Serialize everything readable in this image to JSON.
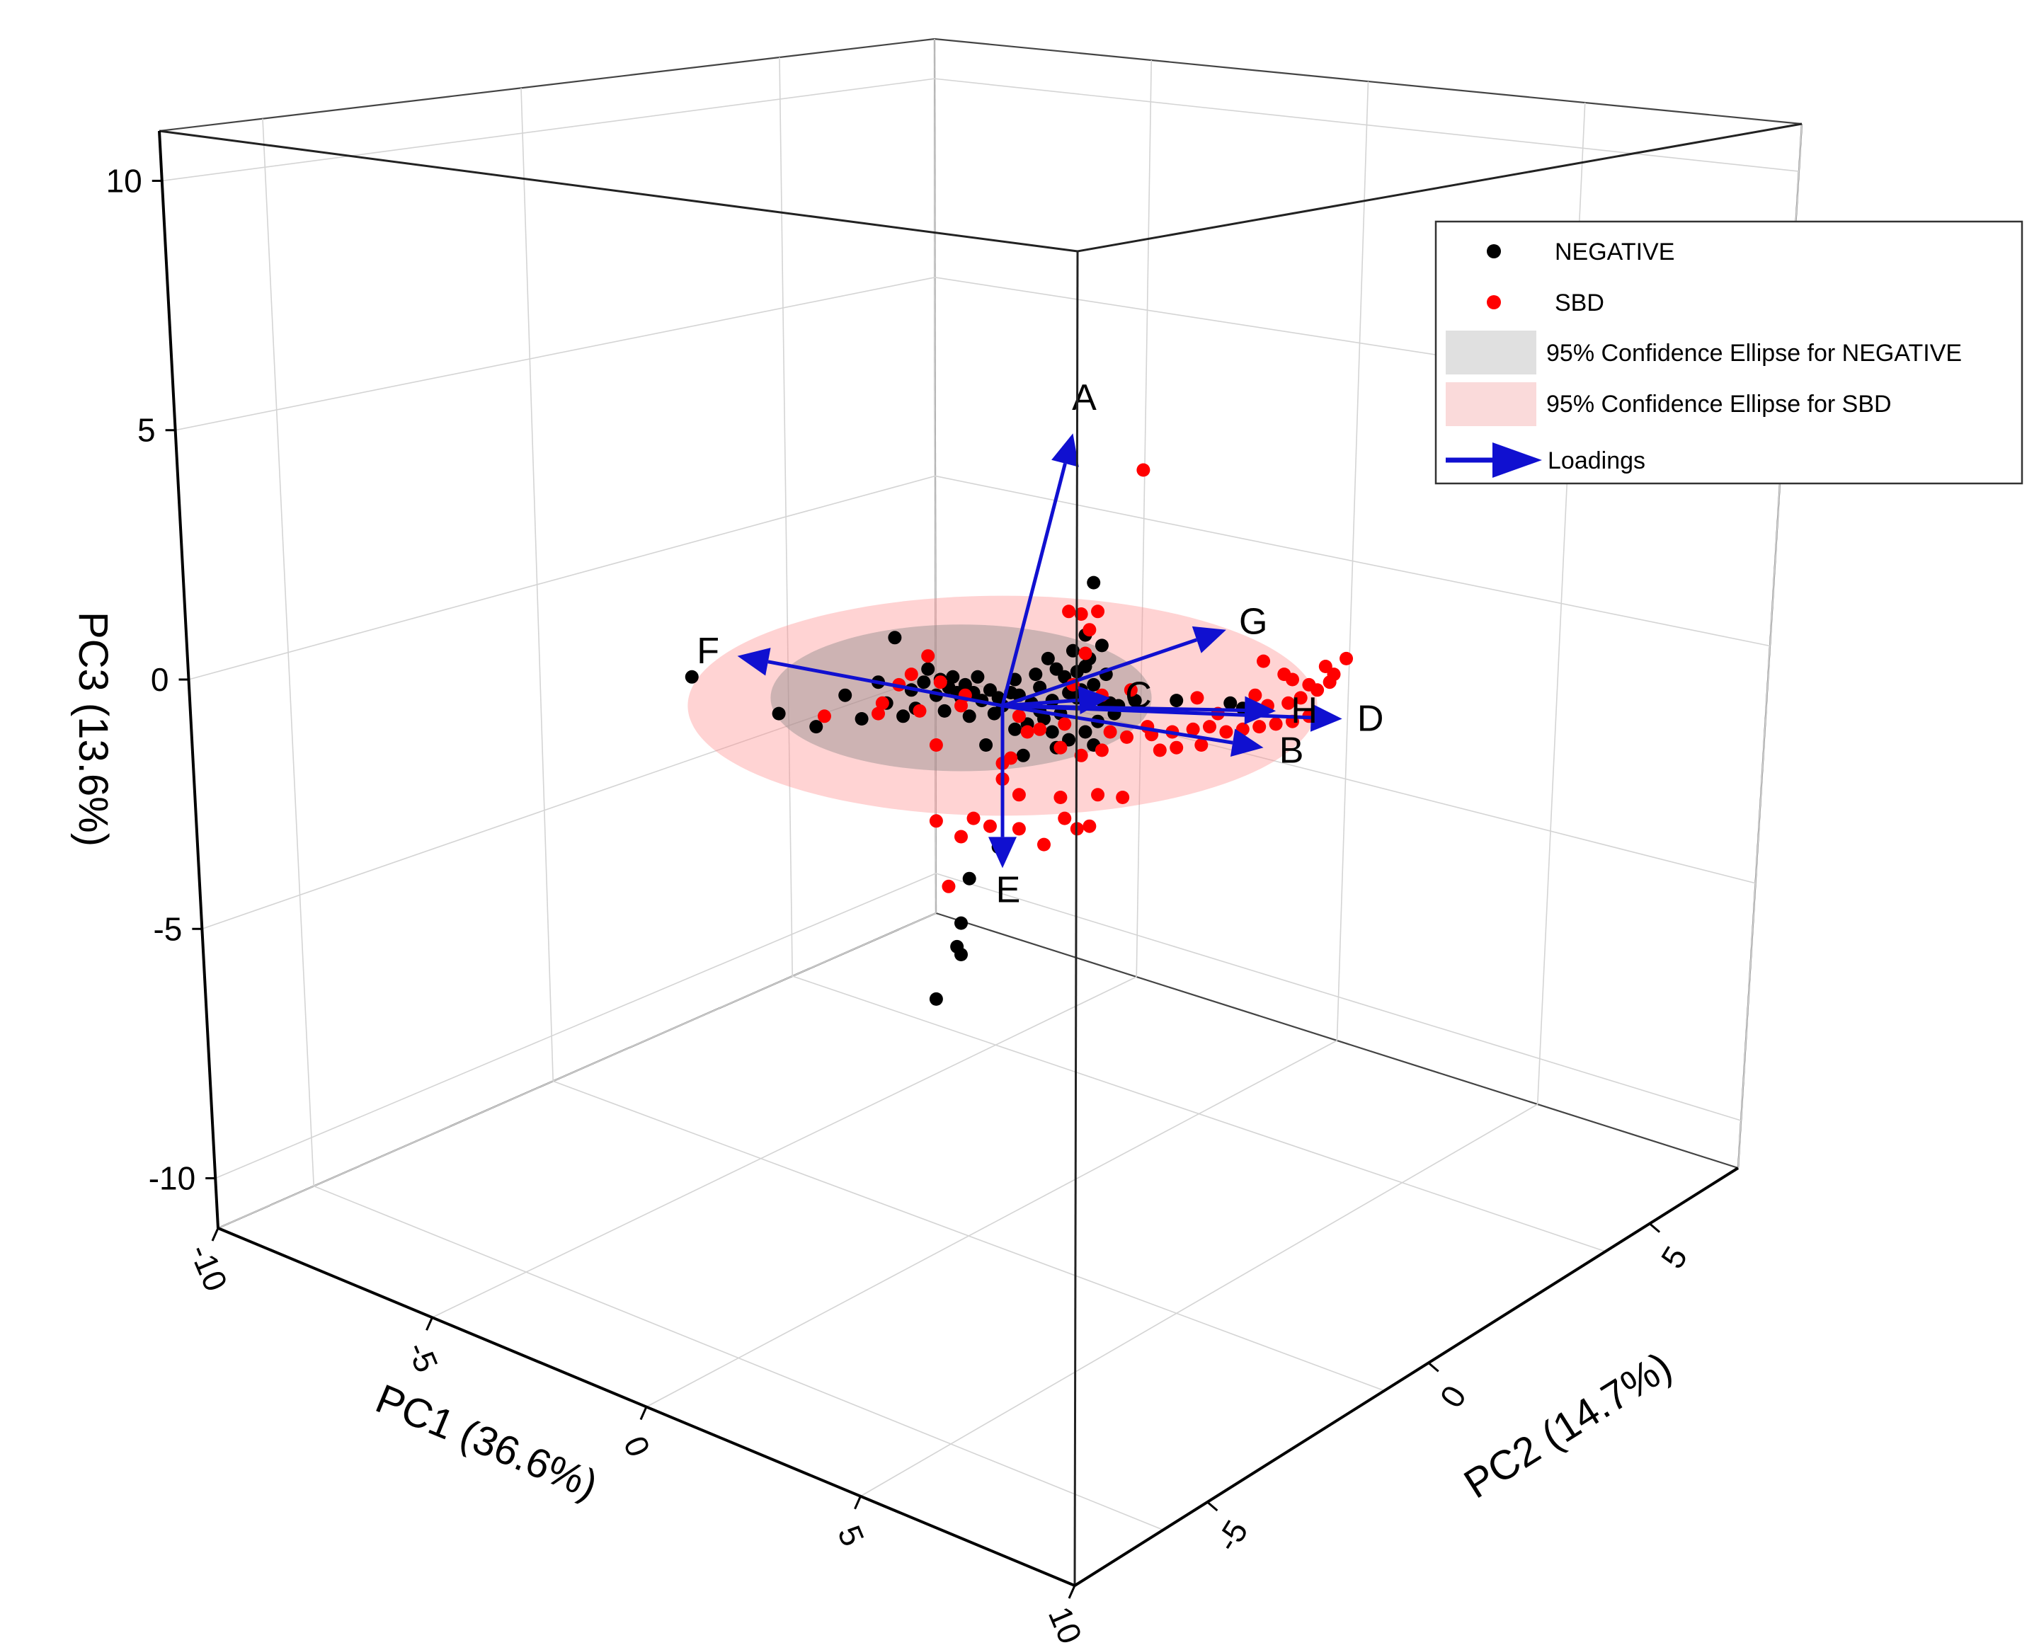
{
  "chart_data": {
    "type": "scatter3d",
    "title": "",
    "axes": {
      "x": {
        "label": "PC1 (36.6%)",
        "range": [
          -10,
          10
        ],
        "ticks": [
          -10,
          -5,
          0,
          5,
          10
        ],
        "tick_labels": [
          "-10",
          "-5",
          "0",
          "5",
          "10"
        ]
      },
      "y": {
        "label": "PC2 (14.7%)",
        "range": [
          -8,
          7
        ],
        "ticks": [
          -5,
          0,
          5
        ],
        "tick_labels": [
          "-5",
          "0",
          "5"
        ]
      },
      "z": {
        "label": "PC3 (13.6%)",
        "range": [
          -11,
          11
        ],
        "ticks": [
          -10,
          -5,
          0,
          5,
          10
        ],
        "tick_labels": [
          "-10",
          "-5",
          "0",
          "5",
          "10"
        ]
      }
    },
    "grid": true,
    "legend": {
      "position": "top-right",
      "entries": [
        {
          "label": "NEGATIVE",
          "kind": "marker",
          "color": "#000000"
        },
        {
          "label": "SBD",
          "kind": "marker",
          "color": "#ff0000"
        },
        {
          "label": "95% Confidence Ellipse for  NEGATIVE",
          "kind": "patch",
          "color": "#e0e0e0"
        },
        {
          "label": "95% Confidence Ellipse for  SBD",
          "kind": "patch",
          "color": "#fadada"
        },
        {
          "label": "Loadings",
          "kind": "arrow",
          "color": "#1010d0"
        }
      ]
    },
    "ellipses": [
      {
        "group": "SBD",
        "color": "#ff8c8c",
        "opacity": 0.38,
        "center": [
          0,
          0,
          0
        ],
        "semi_axes_pc1_pc3": [
          7.6,
          4.2
        ]
      },
      {
        "group": "NEGATIVE",
        "color": "#888888",
        "opacity": 0.42,
        "center": [
          -1,
          -0.5,
          0.3
        ],
        "semi_axes_pc1_pc3": [
          4.6,
          2.8
        ]
      }
    ],
    "loadings": [
      {
        "name": "A",
        "x": 1.7,
        "z": 10.4
      },
      {
        "name": "B",
        "x": 6.3,
        "z": -1.6
      },
      {
        "name": "C",
        "x": 2.6,
        "z": 0.3
      },
      {
        "name": "D",
        "x": 8.2,
        "z": -0.5
      },
      {
        "name": "E",
        "x": 0.0,
        "z": -6.2
      },
      {
        "name": "F",
        "x": -6.4,
        "z": 1.9
      },
      {
        "name": "G",
        "x": 5.4,
        "z": 2.9
      },
      {
        "name": "H",
        "x": 6.6,
        "z": -0.2
      }
    ],
    "series": [
      {
        "name": "NEGATIVE",
        "color": "#000000",
        "points_pc1_pc3": [
          [
            -7.5,
            1.1
          ],
          [
            -5.4,
            -0.3
          ],
          [
            -4.5,
            -0.8
          ],
          [
            -3.0,
            0.9
          ],
          [
            -2.6,
            2.6
          ],
          [
            -1.8,
            1.4
          ],
          [
            -1.5,
            1.0
          ],
          [
            -1.2,
            1.1
          ],
          [
            -0.9,
            0.8
          ],
          [
            -0.6,
            1.1
          ],
          [
            -0.3,
            0.6
          ],
          [
            -2.2,
            0.6
          ],
          [
            -1.6,
            0.4
          ],
          [
            -1.0,
            0.3
          ],
          [
            -0.5,
            0.2
          ],
          [
            -0.1,
            0.3
          ],
          [
            0.2,
            0.5
          ],
          [
            0.4,
            0.4
          ],
          [
            -2.8,
            0.1
          ],
          [
            -2.1,
            -0.1
          ],
          [
            -1.4,
            -0.2
          ],
          [
            -0.8,
            -0.4
          ],
          [
            0.0,
            0.0
          ],
          [
            0.7,
            0.1
          ],
          [
            0.3,
            1.0
          ],
          [
            0.8,
            1.2
          ],
          [
            1.3,
            1.4
          ],
          [
            1.7,
            2.1
          ],
          [
            2.0,
            2.7
          ],
          [
            2.1,
            1.8
          ],
          [
            2.0,
            1.5
          ],
          [
            1.8,
            1.3
          ],
          [
            1.5,
            1.1
          ],
          [
            2.2,
            0.8
          ],
          [
            1.9,
            0.6
          ],
          [
            1.6,
            0.5
          ],
          [
            1.2,
            0.2
          ],
          [
            2.4,
            0.2
          ],
          [
            2.6,
            0.1
          ],
          [
            2.8,
            0.0
          ],
          [
            1.4,
            -0.3
          ],
          [
            1.0,
            -0.5
          ],
          [
            0.6,
            -0.7
          ],
          [
            0.3,
            -0.9
          ],
          [
            1.2,
            -1.0
          ],
          [
            1.6,
            -1.3
          ],
          [
            2.0,
            -1.0
          ],
          [
            2.3,
            -0.6
          ],
          [
            -0.4,
            -1.5
          ],
          [
            0.5,
            -1.9
          ],
          [
            1.3,
            -1.6
          ],
          [
            2.2,
            -1.5
          ],
          [
            3.2,
            0.2
          ],
          [
            4.2,
            0.2
          ],
          [
            5.5,
            0.1
          ],
          [
            5.8,
            -0.1
          ],
          [
            2.2,
            4.7
          ],
          [
            -0.1,
            -5.4
          ],
          [
            -0.8,
            -6.6
          ],
          [
            -1.0,
            -8.3
          ],
          [
            -1.1,
            -9.2
          ],
          [
            -1.0,
            -9.5
          ],
          [
            -1.6,
            -11.2
          ],
          [
            -1.9,
            0.9
          ],
          [
            -1.3,
            0.7
          ],
          [
            -0.7,
            0.5
          ],
          [
            0.9,
            0.7
          ],
          [
            1.1,
            1.8
          ],
          [
            2.4,
            2.3
          ],
          [
            2.5,
            1.2
          ],
          [
            -3.4,
            -0.5
          ],
          [
            -2.4,
            -0.4
          ],
          [
            -0.2,
            -0.3
          ],
          [
            0.9,
            -0.2
          ],
          [
            1.8,
            0.3
          ],
          [
            2.7,
            -0.3
          ],
          [
            -3.8,
            0.4
          ],
          [
            -1.1,
            0.5
          ]
        ]
      },
      {
        "name": "SBD",
        "color": "#ff0000",
        "points_pc1_pc3": [
          [
            3.4,
            9.0
          ],
          [
            1.6,
            3.6
          ],
          [
            1.9,
            3.5
          ],
          [
            2.3,
            3.6
          ],
          [
            2.1,
            2.9
          ],
          [
            -1.8,
            1.9
          ],
          [
            -2.2,
            1.2
          ],
          [
            -1.5,
            0.9
          ],
          [
            -0.9,
            0.4
          ],
          [
            -2.9,
            0.1
          ],
          [
            -2.0,
            -0.2
          ],
          [
            -3.0,
            -0.3
          ],
          [
            -4.3,
            -0.4
          ],
          [
            -1.6,
            -1.5
          ],
          [
            0.4,
            -0.4
          ],
          [
            0.9,
            -0.9
          ],
          [
            1.4,
            -1.6
          ],
          [
            1.9,
            -1.9
          ],
          [
            2.4,
            -1.7
          ],
          [
            3.0,
            -1.2
          ],
          [
            3.6,
            -1.1
          ],
          [
            4.1,
            -1.0
          ],
          [
            4.6,
            -0.9
          ],
          [
            5.0,
            -0.8
          ],
          [
            5.4,
            -1.0
          ],
          [
            5.8,
            -0.9
          ],
          [
            6.2,
            -0.8
          ],
          [
            6.6,
            -0.7
          ],
          [
            7.0,
            -0.6
          ],
          [
            7.4,
            -0.4
          ],
          [
            3.8,
            -1.7
          ],
          [
            4.2,
            -1.6
          ],
          [
            4.8,
            -1.5
          ],
          [
            6.3,
            1.7
          ],
          [
            6.8,
            1.2
          ],
          [
            7.0,
            1.0
          ],
          [
            7.4,
            0.8
          ],
          [
            7.6,
            0.6
          ],
          [
            7.9,
            0.9
          ],
          [
            8.0,
            1.2
          ],
          [
            8.3,
            1.8
          ],
          [
            7.8,
            1.5
          ],
          [
            7.2,
            0.3
          ],
          [
            6.9,
            0.1
          ],
          [
            6.4,
            0.0
          ],
          [
            6.1,
            0.4
          ],
          [
            0.0,
            -2.2
          ],
          [
            0.0,
            -2.8
          ],
          [
            0.4,
            -3.4
          ],
          [
            1.4,
            -3.5
          ],
          [
            2.3,
            -3.4
          ],
          [
            2.9,
            -3.5
          ],
          [
            1.5,
            -4.3
          ],
          [
            -0.3,
            -4.6
          ],
          [
            -0.7,
            -4.3
          ],
          [
            0.4,
            -4.7
          ],
          [
            1.0,
            -5.3
          ],
          [
            2.1,
            -4.6
          ],
          [
            1.8,
            -4.7
          ],
          [
            -1.0,
            -5.0
          ],
          [
            -1.6,
            -4.4
          ],
          [
            -1.3,
            -6.9
          ],
          [
            2.6,
            -1.0
          ],
          [
            1.5,
            -0.7
          ],
          [
            0.6,
            -1.0
          ],
          [
            2.4,
            0.4
          ],
          [
            1.7,
            0.8
          ],
          [
            2.0,
            2.0
          ],
          [
            0.2,
            -2.0
          ],
          [
            -1.0,
            0.0
          ],
          [
            -2.5,
            0.8
          ],
          [
            3.1,
            0.6
          ],
          [
            4.7,
            0.3
          ],
          [
            5.2,
            -0.3
          ],
          [
            3.5,
            -0.8
          ]
        ]
      }
    ]
  }
}
